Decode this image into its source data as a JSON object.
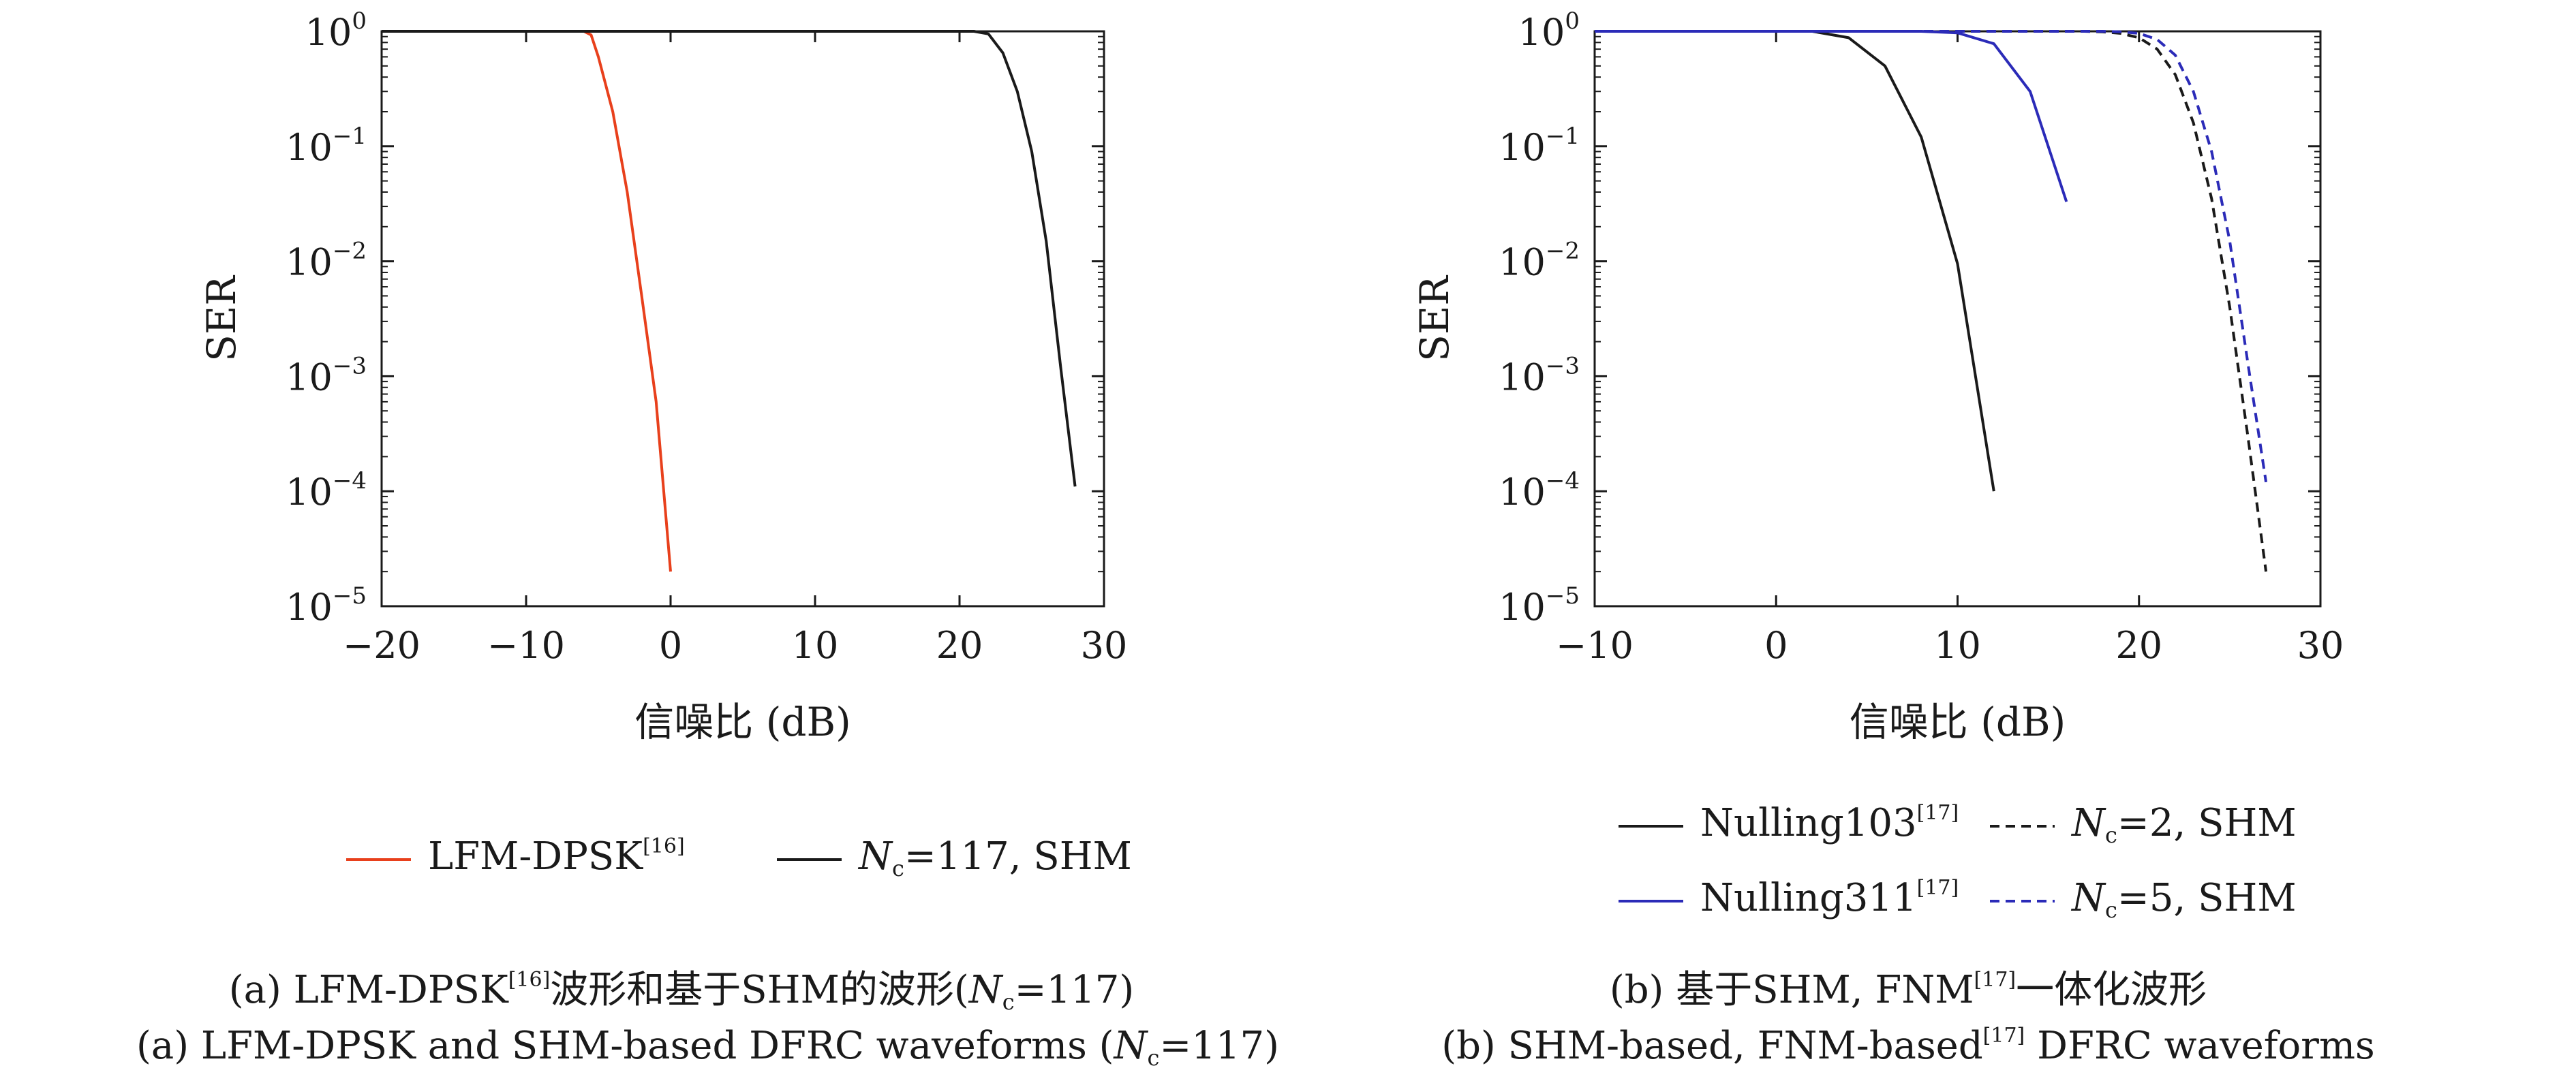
{
  "chart_data": [
    {
      "id": "panel-a",
      "type": "line",
      "scale_y": "log",
      "xlabel": "信噪比 (dB)",
      "ylabel": "SER",
      "xlim": [
        -20,
        30
      ],
      "ylim_log10": [
        -5,
        0
      ],
      "x_ticks": [
        -20,
        -10,
        0,
        10,
        20,
        30
      ],
      "x_tick_labels": [
        "−20",
        "−10",
        "0",
        "10",
        "20",
        "30"
      ],
      "y_ticks_log10": [
        0,
        -1,
        -2,
        -3,
        -4,
        -5
      ],
      "y_tick_labels": [
        "10",
        "10",
        "10",
        "10",
        "10",
        "10"
      ],
      "y_tick_exponents": [
        "0",
        "−1",
        "−2",
        "−3",
        "−4",
        "−5"
      ],
      "grid": false,
      "legend_position": "bottom",
      "series": [
        {
          "name": "LFM-DPSK",
          "name_sup": "[16]",
          "name_sub": "",
          "name_suffix": "",
          "color": "#e8401c",
          "dashed": false,
          "points": [
            [
              -20,
              1
            ],
            [
              -6,
              1
            ],
            [
              -5.5,
              0.93
            ],
            [
              -5,
              0.6
            ],
            [
              -4,
              0.2
            ],
            [
              -3,
              0.04
            ],
            [
              -2,
              0.005
            ],
            [
              -1,
              0.0006
            ],
            [
              0,
              2e-05
            ]
          ]
        },
        {
          "name": "N",
          "name_sup": "",
          "name_sub": "c",
          "name_suffix": "=117, SHM",
          "color": "#1a1a1a",
          "dashed": false,
          "points": [
            [
              -20,
              1
            ],
            [
              21,
              1
            ],
            [
              22,
              0.95
            ],
            [
              23,
              0.65
            ],
            [
              24,
              0.3
            ],
            [
              25,
              0.09
            ],
            [
              26,
              0.015
            ],
            [
              27,
              0.0012
            ],
            [
              28,
              0.00011
            ]
          ]
        }
      ]
    },
    {
      "id": "panel-b",
      "type": "line",
      "scale_y": "log",
      "xlabel": "信噪比 (dB)",
      "ylabel": "SER",
      "xlim": [
        -10,
        30
      ],
      "ylim_log10": [
        -5,
        0
      ],
      "x_ticks": [
        -10,
        0,
        10,
        20,
        30
      ],
      "x_tick_labels": [
        "−10",
        "0",
        "10",
        "20",
        "30"
      ],
      "y_ticks_log10": [
        0,
        -1,
        -2,
        -3,
        -4,
        -5
      ],
      "y_tick_labels": [
        "10",
        "10",
        "10",
        "10",
        "10",
        "10"
      ],
      "y_tick_exponents": [
        "0",
        "−1",
        "−2",
        "−3",
        "−4",
        "−5"
      ],
      "grid": false,
      "legend_position": "bottom",
      "series": [
        {
          "name": "Nulling103",
          "name_sup": "[17]",
          "name_sub": "",
          "name_suffix": "",
          "color": "#1a1a1a",
          "dashed": false,
          "points": [
            [
              -10,
              1
            ],
            [
              2,
              1
            ],
            [
              4,
              0.88
            ],
            [
              6,
              0.5
            ],
            [
              8,
              0.12
            ],
            [
              10,
              0.0095
            ],
            [
              12,
              0.0001
            ]
          ]
        },
        {
          "name": "Nulling311",
          "name_sup": "[17]",
          "name_sub": "",
          "name_suffix": "",
          "color": "#2b2bb8",
          "dashed": false,
          "points": [
            [
              -10,
              1
            ],
            [
              8,
              1
            ],
            [
              10,
              0.97
            ],
            [
              12,
              0.78
            ],
            [
              14,
              0.3
            ],
            [
              16,
              0.033
            ]
          ]
        },
        {
          "name": "N",
          "name_sup": "",
          "name_sub": "c",
          "name_suffix": "=2, SHM",
          "color": "#1a1a1a",
          "dashed": true,
          "points": [
            [
              -10,
              1
            ],
            [
              17,
              1
            ],
            [
              18,
              0.99
            ],
            [
              19,
              0.96
            ],
            [
              20,
              0.88
            ],
            [
              21,
              0.7
            ],
            [
              22,
              0.42
            ],
            [
              23,
              0.16
            ],
            [
              24,
              0.035
            ],
            [
              25,
              0.004
            ],
            [
              26,
              0.0003
            ],
            [
              27,
              2e-05
            ]
          ]
        },
        {
          "name": "N",
          "name_sup": "",
          "name_sub": "c",
          "name_suffix": "=5, SHM",
          "color": "#2b2bb8",
          "dashed": true,
          "points": [
            [
              -10,
              1
            ],
            [
              18,
              1
            ],
            [
              19,
              0.99
            ],
            [
              20,
              0.96
            ],
            [
              21,
              0.85
            ],
            [
              22,
              0.62
            ],
            [
              23,
              0.3
            ],
            [
              24,
              0.09
            ],
            [
              25,
              0.015
            ],
            [
              26,
              0.0013
            ],
            [
              27,
              0.00012
            ]
          ]
        }
      ]
    }
  ],
  "captions": {
    "a_cn_pre": "(a) LFM-DPSK",
    "a_cn_sup": "[16]",
    "a_cn_mid": "波形和基于SHM的波形(",
    "a_cn_n": "N",
    "a_cn_sub": "c",
    "a_cn_post": "=117)",
    "a_en_pre": "(a) LFM-DPSK and SHM-based DFRC waveforms (",
    "a_en_n": "N",
    "a_en_sub": "c",
    "a_en_post": "=117)",
    "b_cn_pre": "(b) 基于SHM, FNM",
    "b_cn_sup": "[17]",
    "b_cn_post": "一体化波形",
    "b_en_pre": "(b) SHM-based, FNM-based",
    "b_en_sup": "[17]",
    "b_en_post": " DFRC waveforms"
  }
}
